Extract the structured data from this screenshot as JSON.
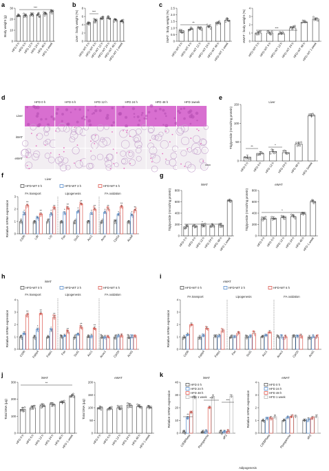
{
  "colors": {
    "black": "#333333",
    "blue": "#3a78c2",
    "red": "#d63a2f",
    "gray": "#aaaaaa",
    "he_pink": "#e56fbf"
  },
  "panels": {
    "a": {
      "label": "a",
      "ylabel": "Body weight (g)",
      "sig": "***",
      "ticks": [
        "0",
        "10",
        "20",
        "30"
      ],
      "cats": [
        "HFD 0 h",
        "HFD 6 h",
        "HFD 12 h",
        "HFD 24 h",
        "HFD 48 h",
        "HFD 1 week"
      ]
    },
    "b": {
      "label": "b",
      "ylabel": "Liver : body weight (%)",
      "sig": "***",
      "ticks": [
        "0",
        "2",
        "4",
        "6",
        "8"
      ],
      "cats": [
        "HFD-WT 0 h",
        "HFD-WT 6 h",
        "HFD-WT 12 h",
        "HFD-WT 24 h",
        "HFD-WT 48 h",
        "HFD-WT 1 week"
      ]
    },
    "c": {
      "label": "c",
      "ylabel_left": "iWAT : body weight (%)",
      "ylabel_right": "eWAT : body weight (%)",
      "sig_left": "**",
      "sig_right": "***",
      "ticks_left": [
        "0",
        "0.5",
        "1.0",
        "1.5",
        "2.0",
        "2.5"
      ],
      "ticks_right": [
        "0",
        "1",
        "2",
        "3",
        "4"
      ],
      "cats": [
        "HFD-WT 0 h",
        "HFD-WT 6 h",
        "HFD-WT 12 h",
        "HFD-WT 24 h",
        "HFD-WT 48 h",
        "HFD-WT 1 week"
      ]
    },
    "d": {
      "label": "d",
      "cols": [
        "HFD 0 h",
        "HFD 6 h",
        "HFD 12 h",
        "HFD 24 h",
        "HFD 48 h",
        "HFD 1week"
      ],
      "rows": [
        "Liver",
        "iWAT",
        "eWAT"
      ]
    },
    "e": {
      "label": "e",
      "title": "Liver",
      "ylabel": "Triglyceride (mmol/mg protein)",
      "ticks": [
        "0",
        "50",
        "100",
        "150"
      ],
      "sig": [
        "**",
        "*"
      ],
      "cats": [
        "HFD 0 h",
        "HFD 6 h",
        "HFD 12 h",
        "HFD 24 h",
        "HFD 48 h",
        "HFD 1week"
      ]
    },
    "f": {
      "label": "f",
      "title": "Liver",
      "ylabel": "Relative mRNA expression",
      "ticks": [
        "0",
        "1",
        "2",
        "3"
      ],
      "legend": [
        "HFD-WT 0 h",
        "HFD-WT 3 h",
        "HFD-WT 6 h"
      ],
      "groups": [
        "FA transport",
        "Lipogenesis",
        "FA oxidation"
      ],
      "genes": [
        "Cd36",
        "Ldlr",
        "Lrp",
        "Fas",
        "Scd1",
        "Acc1",
        "Acox",
        "Cpt1a",
        "Acadl"
      ]
    },
    "g": {
      "label": "g",
      "titles": [
        "iWAT",
        "eWAT"
      ],
      "ylabel": "Triglyceride (mmol/mg protein)",
      "ticks": [
        "0",
        "200",
        "400",
        "600",
        "800"
      ],
      "sig": "*",
      "cats": [
        "HFD 0 h",
        "HFD 6 h",
        "HFD 12 h",
        "HFD 24 h",
        "HFD 48 h",
        "HFD 1 week"
      ]
    },
    "h": {
      "label": "h",
      "title": "iWAT",
      "ylabel": "Relative mRNA expression",
      "ticks": [
        "0",
        "1",
        "2",
        "3",
        "4"
      ],
      "legend": [
        "HFD-WT 0 h",
        "HFD-WT 3 h",
        "HFD-WT 6 h"
      ],
      "groups": [
        "FA transport",
        "Lipogenesis",
        "FA oxidation"
      ],
      "genes": [
        "Cd36",
        "Fabp4",
        "Fatp1",
        "Fas",
        "Scd1",
        "Acc1",
        "Acox1",
        "Cpt1b",
        "Acsl1"
      ]
    },
    "i": {
      "label": "i",
      "title": "eWAT",
      "ylabel": "Relative mRNA expression",
      "ticks": [
        "0",
        "1",
        "2",
        "3",
        "4"
      ],
      "legend": [
        "HFD-WT 0 h",
        "HFD-WT 3 h",
        "HFD-WT 6 h"
      ],
      "groups": [
        "FA transport",
        "Lipogenesis",
        "FA oxidation"
      ],
      "genes": [
        "Cd36",
        "Fabp4",
        "Fatp1",
        "Fas",
        "Scd1",
        "Acc1",
        "Acox1",
        "Cpt1b",
        "Acsl1"
      ]
    },
    "j": {
      "label": "j",
      "titles": [
        "iWAT",
        "eWAT"
      ],
      "ylabel": "Total DNA (μg)",
      "ticks_left": [
        "0",
        "100",
        "200",
        "300"
      ],
      "ticks_right": [
        "0",
        "50",
        "100",
        "150",
        "200"
      ],
      "sig": "**",
      "cats": [
        "HFD 0 h",
        "HFD 6 h",
        "HFD 12 h",
        "HFD 24 h",
        "HFD 48 h",
        "HFD 1 week"
      ]
    },
    "k": {
      "label": "k",
      "titles": [
        "iWAT",
        "eWAT"
      ],
      "ylabel": "Relative mRNA expression",
      "ticks_left": [
        "0",
        "10",
        "20",
        "30",
        "40"
      ],
      "ticks_right": [
        "0",
        "1",
        "2",
        "3",
        "4"
      ],
      "legend": [
        "HFD 0 h",
        "HFD 24 h",
        "HFD 48 h",
        "HFD 1 week"
      ],
      "genes": [
        "C/EBPbeta",
        "Ppargamma",
        "aP2"
      ],
      "sig": [
        "**",
        "***",
        "***"
      ],
      "xtitle": "Adipogenesis"
    }
  },
  "chart_data": [
    {
      "type": "bar",
      "panel": "a",
      "categories": [
        "HFD 0 h",
        "HFD 6 h",
        "HFD 12 h",
        "HFD 24 h",
        "HFD 48 h",
        "HFD 1 week"
      ],
      "values": [
        23,
        23.5,
        24,
        24,
        25,
        27
      ],
      "ylim": [
        0,
        30
      ],
      "ylabel": "Body weight (g)"
    },
    {
      "type": "bar",
      "panel": "b",
      "categories": [
        "HFD-WT 0 h",
        "HFD-WT 6 h",
        "HFD-WT 12 h",
        "HFD-WT 24 h",
        "HFD-WT 48 h",
        "HFD-WT 1 week"
      ],
      "values": [
        4.3,
        5.0,
        5.6,
        5.6,
        5.2,
        4.8
      ],
      "ylim": [
        0,
        8
      ],
      "ylabel": "Liver : body weight (%)"
    },
    {
      "type": "bar",
      "panel": "c-iWAT",
      "categories": [
        "HFD-WT 0 h",
        "HFD-WT 6 h",
        "HFD-WT 12 h",
        "HFD-WT 24 h",
        "HFD-WT 48 h",
        "HFD-WT 1 week"
      ],
      "values": [
        0.8,
        0.9,
        1.0,
        1.1,
        1.4,
        1.6
      ],
      "ylim": [
        0,
        2.5
      ],
      "ylabel": "iWAT : body weight (%)"
    },
    {
      "type": "bar",
      "panel": "c-eWAT",
      "categories": [
        "HFD-WT 0 h",
        "HFD-WT 6 h",
        "HFD-WT 12 h",
        "HFD-WT 24 h",
        "HFD-WT 48 h",
        "HFD-WT 1 week"
      ],
      "values": [
        1.0,
        1.0,
        0.9,
        1.6,
        2.3,
        2.7
      ],
      "ylim": [
        0,
        4
      ],
      "ylabel": "eWAT : body weight (%)"
    },
    {
      "type": "bar",
      "panel": "e",
      "categories": [
        "HFD 0 h",
        "HFD 6 h",
        "HFD 12 h",
        "HFD 24 h",
        "HFD 48 h",
        "HFD 1week"
      ],
      "values": [
        10,
        20,
        25,
        22,
        45,
        120
      ],
      "ylim": [
        0,
        150
      ],
      "ylabel": "Triglyceride (mmol/mg protein)"
    },
    {
      "type": "bar",
      "panel": "f",
      "categories": [
        "Cd36",
        "Ldlr",
        "Lrp",
        "Fas",
        "Scd1",
        "Acc1",
        "Acox",
        "Cpt1a",
        "Acadl"
      ],
      "series": [
        {
          "name": "HFD-WT 0 h",
          "values": [
            1,
            1,
            1,
            1,
            1,
            1,
            1,
            1,
            1
          ]
        },
        {
          "name": "HFD-WT 3 h",
          "values": [
            1.6,
            1.3,
            1.6,
            1.7,
            1.8,
            1.6,
            1.7,
            1.5,
            1.5
          ]
        },
        {
          "name": "HFD-WT 6 h",
          "values": [
            2.3,
            1.6,
            2.0,
            2.1,
            2.4,
            2.0,
            2.0,
            2.2,
            1.9
          ]
        }
      ],
      "ylim": [
        0,
        3
      ],
      "ylabel": "Relative mRNA expression"
    },
    {
      "type": "bar",
      "panel": "g-iWAT",
      "categories": [
        "HFD 0 h",
        "HFD 6 h",
        "HFD 12 h",
        "HFD 24 h",
        "HFD 48 h",
        "HFD 1 week"
      ],
      "values": [
        160,
        175,
        185,
        180,
        190,
        620
      ],
      "ylim": [
        0,
        800
      ],
      "ylabel": "Triglyceride (mmol/mg protein)"
    },
    {
      "type": "bar",
      "panel": "g-eWAT",
      "categories": [
        "HFD 0 h",
        "HFD 6 h",
        "HFD 12 h",
        "HFD 24 h",
        "HFD 48 h",
        "HFD 1 week"
      ],
      "values": [
        300,
        310,
        320,
        340,
        380,
        600
      ],
      "ylim": [
        0,
        800
      ]
    },
    {
      "type": "bar",
      "panel": "h",
      "categories": [
        "Cd36",
        "Fabp4",
        "Fatp1",
        "Fas",
        "Scd1",
        "Acc1",
        "Acox1",
        "Cpt1b",
        "Acsl1"
      ],
      "series": [
        {
          "name": "HFD-WT 0 h",
          "values": [
            1,
            1,
            1,
            1,
            1,
            1,
            1,
            1,
            1
          ]
        },
        {
          "name": "HFD-WT 3 h",
          "values": [
            1.3,
            1.6,
            1.5,
            1.1,
            1.2,
            1.1,
            1.0,
            1.1,
            1.0
          ]
        },
        {
          "name": "HFD-WT 6 h",
          "values": [
            2.8,
            2.9,
            2.6,
            1.4,
            1.8,
            1.7,
            1.0,
            1.1,
            1.0
          ]
        }
      ],
      "ylim": [
        0,
        4
      ],
      "ylabel": "Relative mRNA expression"
    },
    {
      "type": "bar",
      "panel": "i",
      "categories": [
        "Cd36",
        "Fabp4",
        "Fatp1",
        "Fas",
        "Scd1",
        "Acc1",
        "Acox1",
        "Cpt1b",
        "Acsl1"
      ],
      "series": [
        {
          "name": "HFD-WT 0 h",
          "values": [
            1,
            1,
            1,
            1,
            1,
            1,
            1,
            1,
            1
          ]
        },
        {
          "name": "HFD-WT 3 h",
          "values": [
            1.2,
            1.1,
            1.1,
            1.0,
            1.0,
            1.1,
            1.0,
            1.0,
            1.0
          ]
        },
        {
          "name": "HFD-WT 6 h",
          "values": [
            2.0,
            1.7,
            1.5,
            1.3,
            1.3,
            1.4,
            1.0,
            1.1,
            1.0
          ]
        }
      ],
      "ylim": [
        0,
        4
      ],
      "ylabel": "Relative mRNA expression"
    },
    {
      "type": "bar",
      "panel": "j-iWAT",
      "categories": [
        "HFD 0 h",
        "HFD 6 h",
        "HFD 12 h",
        "HFD 24 h",
        "HFD 48 h",
        "HFD 1 week"
      ],
      "values": [
        140,
        150,
        160,
        170,
        180,
        220
      ],
      "ylim": [
        0,
        300
      ],
      "ylabel": "Total DNA (μg)"
    },
    {
      "type": "bar",
      "panel": "j-eWAT",
      "categories": [
        "HFD 0 h",
        "HFD 6 h",
        "HFD 12 h",
        "HFD 24 h",
        "HFD 48 h",
        "HFD 1 week"
      ],
      "values": [
        100,
        95,
        100,
        110,
        105,
        100
      ],
      "ylim": [
        0,
        200
      ],
      "ylabel": "Total DNA (μg)"
    },
    {
      "type": "bar",
      "panel": "k-iWAT",
      "categories": [
        "C/EBPbeta",
        "Ppargamma",
        "aP2"
      ],
      "series": [
        {
          "name": "HFD 0 h",
          "values": [
            1,
            1,
            1
          ]
        },
        {
          "name": "HFD 24 h",
          "values": [
            12,
            1.2,
            1.1
          ]
        },
        {
          "name": "HFD 48 h",
          "values": [
            16,
            20,
            1.3
          ]
        },
        {
          "name": "HFD 1 week",
          "values": [
            28,
            29,
            29
          ]
        }
      ],
      "ylim": [
        0,
        40
      ],
      "ylabel": "Relative mRNA expression"
    },
    {
      "type": "bar",
      "panel": "k-eWAT",
      "categories": [
        "C/EBPbeta",
        "Ppargamma",
        "aP2"
      ],
      "series": [
        {
          "name": "HFD 0 h",
          "values": [
            1,
            1,
            1
          ]
        },
        {
          "name": "HFD 24 h",
          "values": [
            1.1,
            1.2,
            1.1
          ]
        },
        {
          "name": "HFD 48 h",
          "values": [
            1.2,
            1.3,
            1.2
          ]
        },
        {
          "name": "HFD 1 week",
          "values": [
            1.3,
            1.3,
            1.3
          ]
        }
      ],
      "ylim": [
        0,
        4
      ],
      "ylabel": "Relative mRNA expression"
    }
  ]
}
